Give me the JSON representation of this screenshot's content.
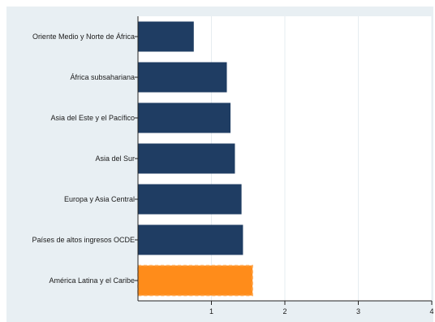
{
  "chart_data": {
    "type": "bar",
    "orientation": "horizontal",
    "title": "",
    "xlabel": "",
    "ylabel": "",
    "categories": [
      "Oriente Medio y Norte de África",
      "África subsahariana",
      "Asia del Este y el Pacífico",
      "Asia del Sur",
      "Europa y Asia Central",
      "Países de altos ingresos OCDE",
      "América Latina y el Caribe"
    ],
    "values": [
      0.76,
      1.21,
      1.26,
      1.32,
      1.41,
      1.43,
      1.56
    ],
    "xlim": [
      0,
      4
    ],
    "xticks": [
      "1",
      "2",
      "3",
      "4"
    ],
    "grid": "vertical",
    "colors": {
      "bar": "#1f3d63",
      "highlight": "#ff8c1a",
      "highlight_border": "#ffb060",
      "panel_background": "#e8eff3",
      "plot_background": "#ffffff",
      "gridline": "#e6ecf0"
    },
    "highlight_category": "América Latina y el Caribe"
  }
}
